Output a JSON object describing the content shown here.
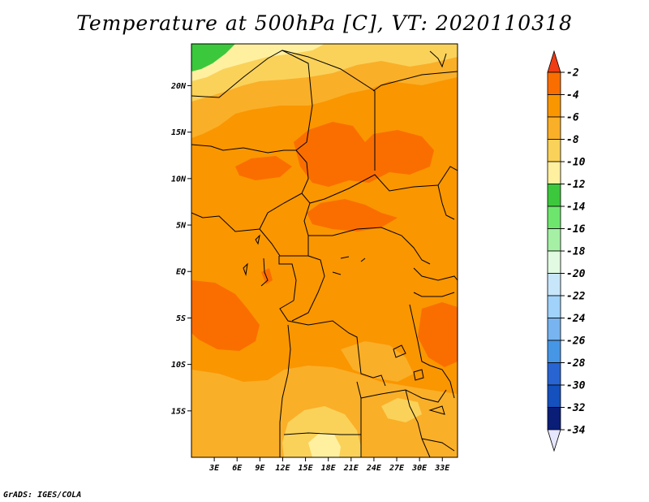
{
  "title": "Temperature at 500hPa [C], VT: 2020110318",
  "credit": "GrADS: IGES/COLA",
  "map": {
    "lat_ticks": [
      "20N",
      "15N",
      "10N",
      "5N",
      "EQ",
      "5S",
      "10S",
      "15S"
    ],
    "lon_ticks": [
      "3E",
      "6E",
      "9E",
      "12E",
      "15E",
      "18E",
      "21E",
      "24E",
      "27E",
      "30E",
      "33E"
    ],
    "extent": {
      "lon_min": 0,
      "lon_max": 35,
      "lat_min": -20,
      "lat_max": 24.5
    }
  },
  "colorbar": {
    "labels": [
      "-2",
      "-4",
      "-6",
      "-8",
      "-10",
      "-12",
      "-14",
      "-16",
      "-18",
      "-20",
      "-22",
      "-24",
      "-26",
      "-28",
      "-30",
      "-32",
      "-34"
    ],
    "colors": [
      "#f03c14",
      "#fa6e00",
      "#fa9600",
      "#faaf28",
      "#fad25a",
      "#fff0a0",
      "#3cc83c",
      "#6ee66e",
      "#a5f0a5",
      "#e1fae1",
      "#c8e6fa",
      "#a0d2fa",
      "#78b4f0",
      "#4696e6",
      "#2864d2",
      "#1450be",
      "#0a1e78",
      "#e6e6ff"
    ]
  }
}
